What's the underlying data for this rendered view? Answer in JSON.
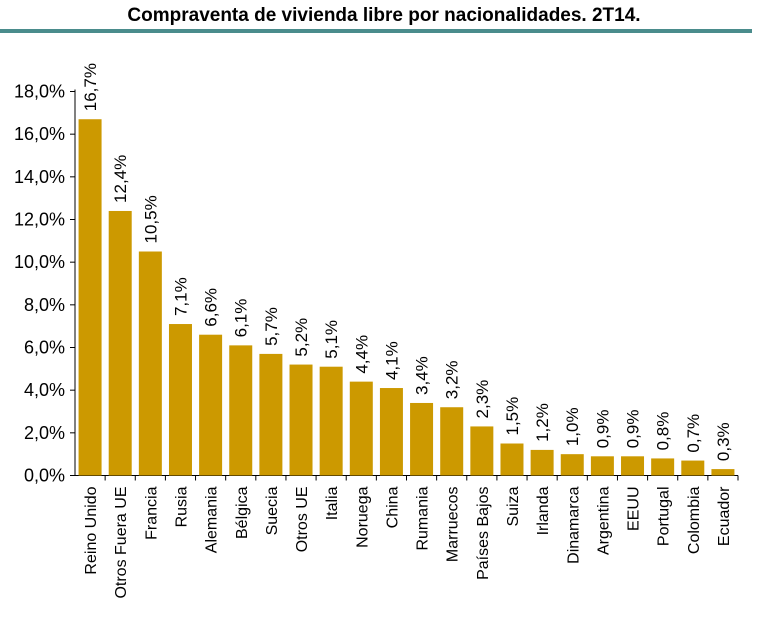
{
  "colors": {
    "bar": "#CC9900",
    "rule": "#4A8C8C",
    "axis": "#000000",
    "text": "#000000"
  },
  "chart_data": {
    "type": "bar",
    "title": "Compraventa de vivienda libre por nacionalidades. 2T14.",
    "xlabel": "",
    "ylabel": "",
    "ylim": [
      0,
      18
    ],
    "yticks": [
      "0,0%",
      "2,0%",
      "4,0%",
      "6,0%",
      "8,0%",
      "10,0%",
      "12,0%",
      "14,0%",
      "16,0%",
      "18,0%"
    ],
    "grid": false,
    "legend": "none",
    "categories": [
      "Reino Unido",
      "Otros Fuera UE",
      "Francia",
      "Rusia",
      "Alemania",
      "Bélgica",
      "Suecia",
      "Otros UE",
      "Italia",
      "Noruega",
      "China",
      "Rumania",
      "Marruecos",
      "Países Bajos",
      "Suiza",
      "Irlanda",
      "Dinamarca",
      "Argentina",
      "EEUU",
      "Portugal",
      "Colombia",
      "Ecuador"
    ],
    "values": [
      16.7,
      12.4,
      10.5,
      7.1,
      6.6,
      6.1,
      5.7,
      5.2,
      5.1,
      4.4,
      4.1,
      3.4,
      3.2,
      2.3,
      1.5,
      1.2,
      1.0,
      0.9,
      0.9,
      0.8,
      0.7,
      0.3
    ],
    "data_labels": [
      "16,7%",
      "12,4%",
      "10,5%",
      "7,1%",
      "6,6%",
      "6,1%",
      "5,7%",
      "5,2%",
      "5,1%",
      "4,4%",
      "4,1%",
      "3,4%",
      "3,2%",
      "2,3%",
      "1,5%",
      "1,2%",
      "1,0%",
      "0,9%",
      "0,9%",
      "0,8%",
      "0,7%",
      "0,3%"
    ]
  }
}
